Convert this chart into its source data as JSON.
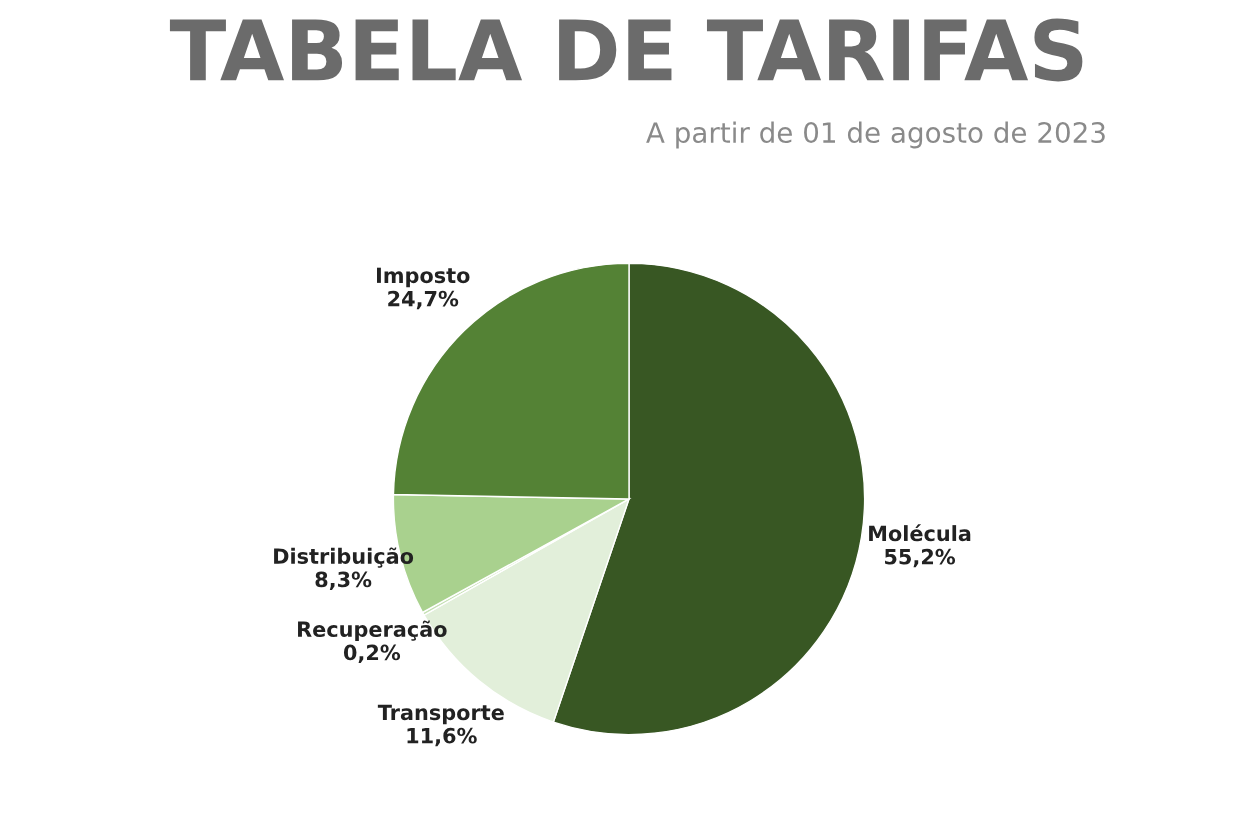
{
  "chart_data": {
    "type": "pie",
    "title": "TABELA DE TARIFAS",
    "subtitle": "A partir de 01 de agosto de 2023",
    "categories": [
      "Molécula",
      "Transporte",
      "Recuperação",
      "Distribuição",
      "Imposto"
    ],
    "values": [
      55.2,
      11.6,
      0.2,
      8.3,
      24.7
    ],
    "value_labels": [
      "55,2%",
      "11,6%",
      "0,2%",
      "8,3%",
      "24,7%"
    ],
    "colors": [
      "#385723",
      "#e2efda",
      "#c5e0b3",
      "#a9d18e",
      "#548235"
    ],
    "legend": false
  }
}
